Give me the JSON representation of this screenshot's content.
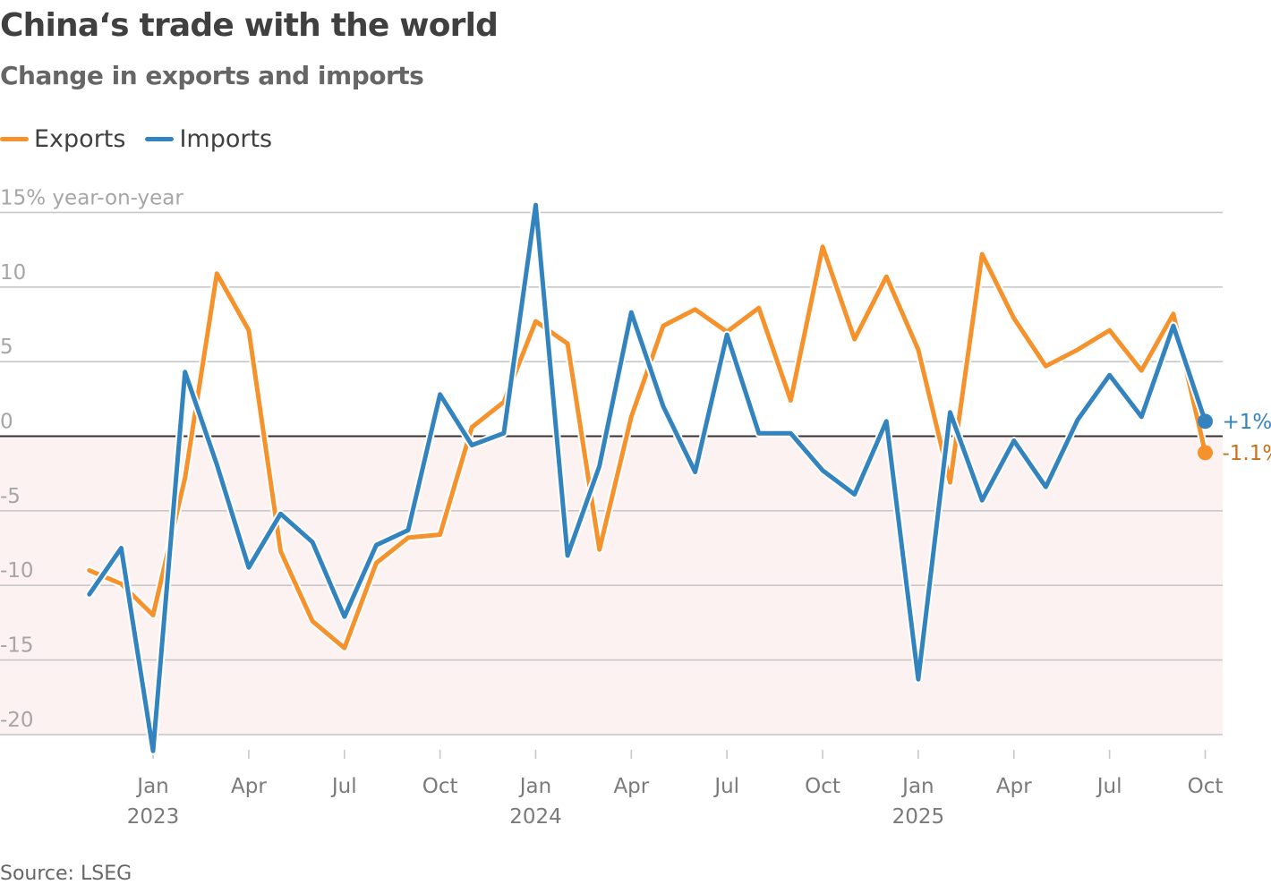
{
  "header": {
    "title": "China‘s trade with the world",
    "subtitle": "Change in exports and imports"
  },
  "legend": [
    {
      "label": "Exports",
      "color": "#f5922c"
    },
    {
      "label": "Imports",
      "color": "#3383bf"
    }
  ],
  "footer": {
    "source": "Source: LSEG"
  },
  "chart_data": {
    "type": "line",
    "title": "China‘s trade with the world",
    "subtitle": "Change in exports and imports",
    "ylabel": "% year-on-year",
    "y_unit_label": "15% year-on-year",
    "ylim": [
      -20,
      15
    ],
    "yticks": [
      15,
      10,
      5,
      0,
      -5,
      -10,
      -15,
      -20
    ],
    "ytick_labels": [
      "15% year-on-year",
      "10",
      "5",
      "0",
      "-5",
      "-10",
      "-15",
      "-20"
    ],
    "grid": true,
    "negative_region_shaded": true,
    "negative_region_color": "#fdf2f2",
    "legend_position": "top-left",
    "x": [
      "Nov 2022",
      "Dec 2022",
      "Jan 2023",
      "Feb 2023",
      "Mar 2023",
      "Apr 2023",
      "May 2023",
      "Jun 2023",
      "Jul 2023",
      "Aug 2023",
      "Sep 2023",
      "Oct 2023",
      "Nov 2023",
      "Dec 2023",
      "Jan 2024",
      "Feb 2024",
      "Mar 2024",
      "Apr 2024",
      "May 2024",
      "Jun 2024",
      "Jul 2024",
      "Aug 2024",
      "Sep 2024",
      "Oct 2024",
      "Nov 2024",
      "Dec 2024",
      "Jan 2025",
      "Feb 2025",
      "Mar 2025",
      "Apr 2025",
      "May 2025",
      "Jun 2025",
      "Jul 2025",
      "Aug 2025",
      "Sep 2025",
      "Oct 2025"
    ],
    "xticks": [
      {
        "index": 2,
        "label": "Jan",
        "year": "2023"
      },
      {
        "index": 5,
        "label": "Apr",
        "year": ""
      },
      {
        "index": 8,
        "label": "Jul",
        "year": ""
      },
      {
        "index": 11,
        "label": "Oct",
        "year": ""
      },
      {
        "index": 14,
        "label": "Jan",
        "year": "2024"
      },
      {
        "index": 17,
        "label": "Apr",
        "year": ""
      },
      {
        "index": 20,
        "label": "Jul",
        "year": ""
      },
      {
        "index": 23,
        "label": "Oct",
        "year": ""
      },
      {
        "index": 26,
        "label": "Jan",
        "year": "2025"
      },
      {
        "index": 29,
        "label": "Apr",
        "year": ""
      },
      {
        "index": 32,
        "label": "Jul",
        "year": ""
      },
      {
        "index": 35,
        "label": "Oct",
        "year": ""
      }
    ],
    "series": [
      {
        "name": "Exports",
        "color": "#f5922c",
        "label_color": "#c8711d",
        "end_label": "-1.1%",
        "values": [
          -9.0,
          -9.9,
          -12.0,
          -2.8,
          10.9,
          7.1,
          -7.7,
          -12.4,
          -14.2,
          -8.5,
          -6.8,
          -6.6,
          0.6,
          2.3,
          7.7,
          6.2,
          -7.6,
          1.3,
          7.4,
          8.5,
          7.0,
          8.6,
          2.4,
          12.7,
          6.5,
          10.7,
          5.8,
          -3.1,
          12.2,
          7.9,
          4.7,
          5.8,
          7.1,
          4.4,
          8.2,
          -1.1
        ]
      },
      {
        "name": "Imports",
        "color": "#3383bf",
        "label_color": "#3383bf",
        "end_label": "+1%",
        "values": [
          -10.6,
          -7.5,
          -21.1,
          4.3,
          -1.9,
          -8.8,
          -5.2,
          -7.1,
          -12.1,
          -7.3,
          -6.3,
          2.8,
          -0.6,
          0.2,
          15.5,
          -8.0,
          -2.0,
          8.3,
          2.0,
          -2.4,
          6.8,
          0.2,
          0.2,
          -2.3,
          -3.9,
          1.0,
          -16.3,
          1.6,
          -4.3,
          -0.3,
          -3.4,
          1.1,
          4.1,
          1.3,
          7.4,
          1.0
        ]
      }
    ]
  }
}
